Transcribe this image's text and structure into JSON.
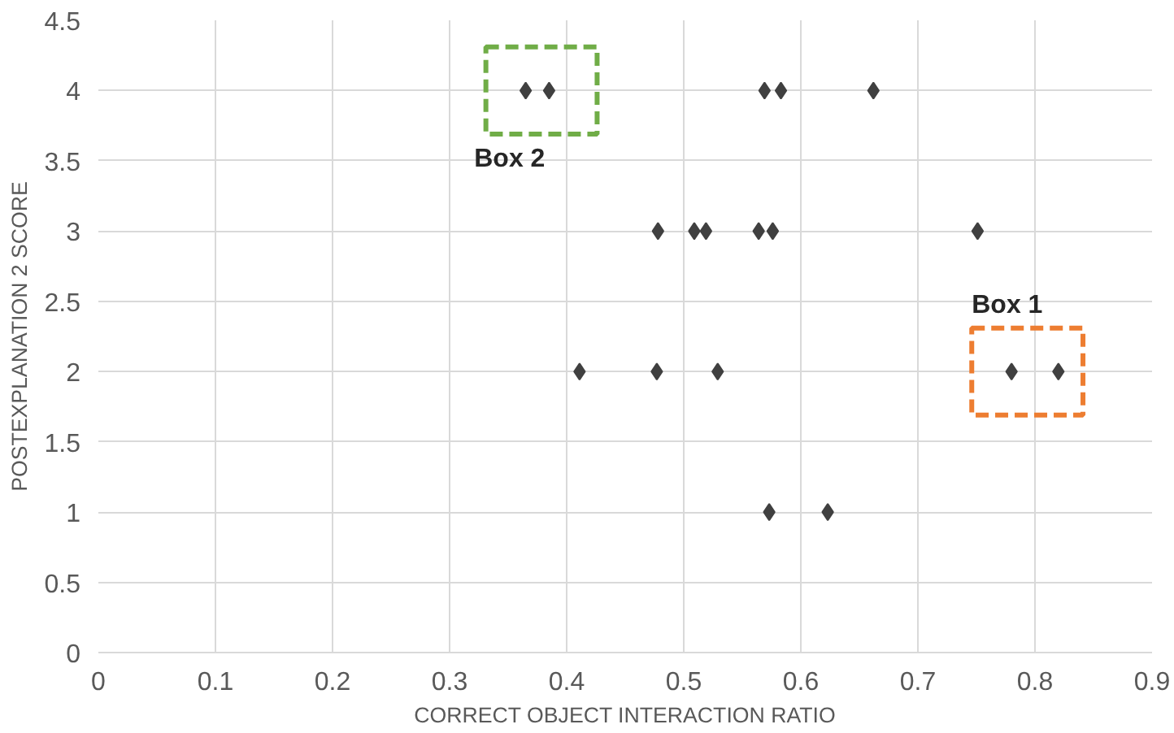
{
  "chart_data": {
    "type": "scatter",
    "xlabel": "CORRECT OBJECT INTERACTION RATIO",
    "ylabel": "POSTEXPLANATION 2 SCORE",
    "x": [
      0.365,
      0.385,
      0.569,
      0.583,
      0.662,
      0.478,
      0.509,
      0.519,
      0.564,
      0.576,
      0.751,
      0.411,
      0.477,
      0.529,
      0.78,
      0.82,
      0.573,
      0.623
    ],
    "series": [
      {
        "color": "#404040",
        "values": [
          4,
          4,
          4,
          4,
          4,
          3,
          3,
          3,
          3,
          3,
          3,
          2,
          2,
          2,
          2,
          2,
          1,
          1
        ]
      }
    ],
    "xlim": [
      0,
      0.9
    ],
    "ylim": [
      0,
      4.5
    ],
    "xticks": [
      0,
      0.1,
      0.2,
      0.3,
      0.4,
      0.5,
      0.6,
      0.7,
      0.8,
      0.9
    ],
    "yticks": [
      0,
      0.5,
      1,
      1.5,
      2,
      2.5,
      3,
      3.5,
      4,
      4.5
    ],
    "grid": true,
    "marker": "diamond",
    "annotations": [
      {
        "text": "Box 1",
        "x": 0.78,
        "y": 2
      },
      {
        "text": "Box 2",
        "x": 0.365,
        "y": 4
      }
    ]
  }
}
